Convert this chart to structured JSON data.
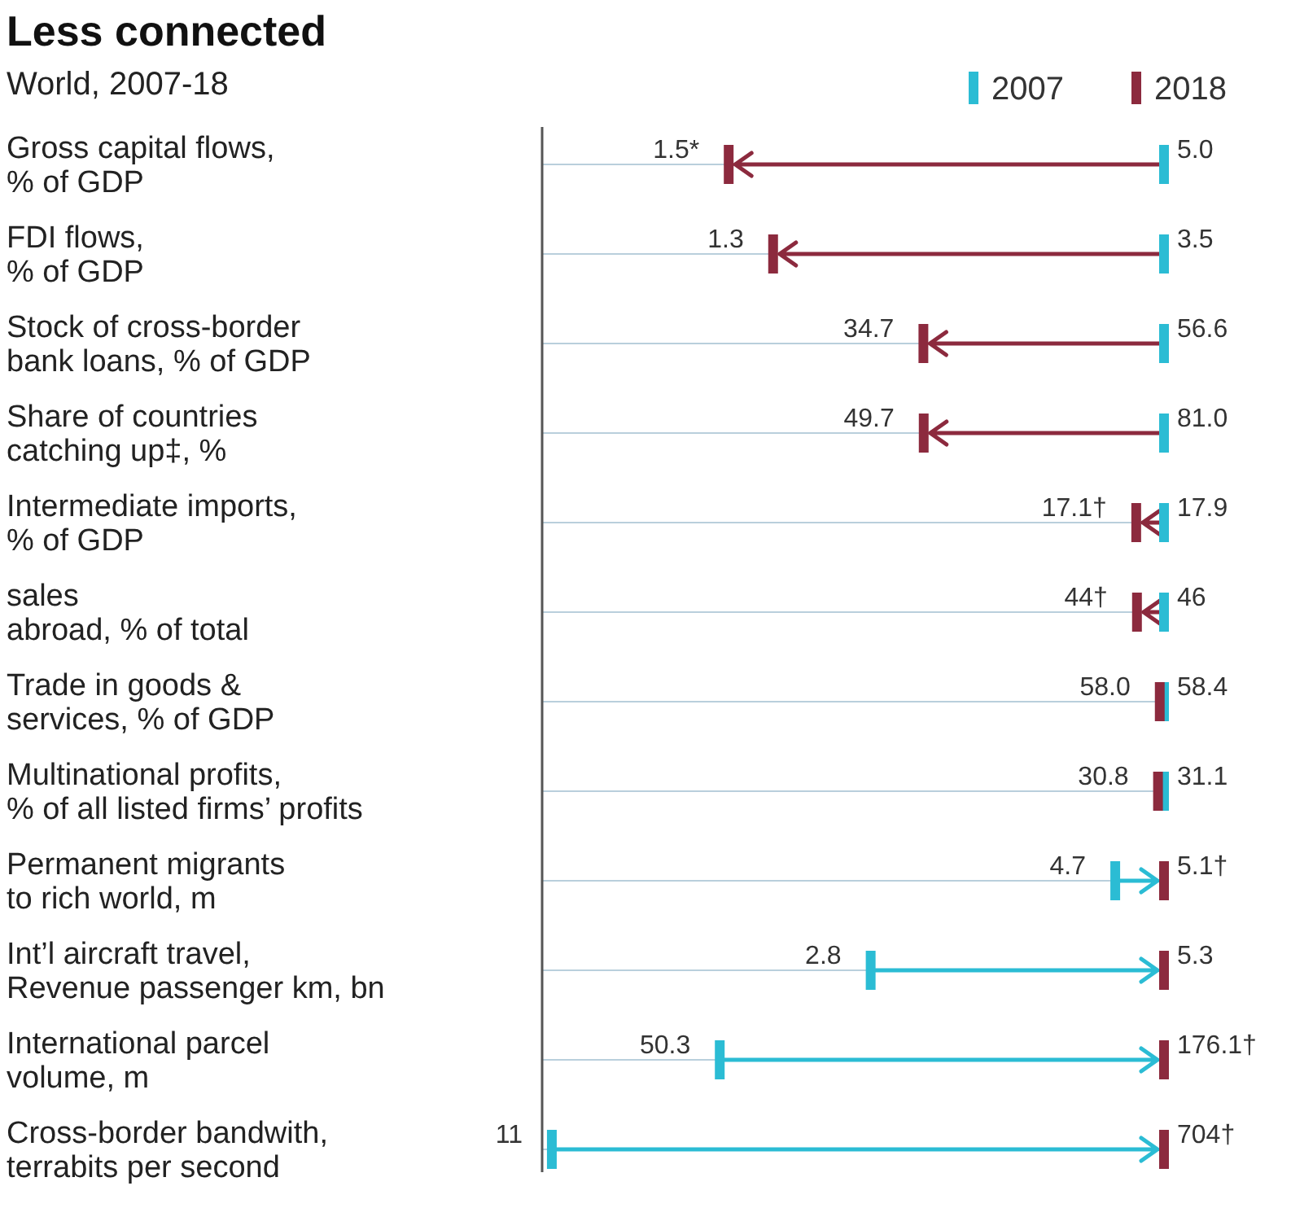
{
  "chart_data": {
    "type": "other",
    "title": "Less connected",
    "subtitle": "World, 2007-18",
    "legend": "top right",
    "categories": [
      "Gross capital flows,\n% of GDP",
      "FDI flows,\n% of GDP",
      "Stock of cross-border\nbank loans, % of GDP",
      "Share of countries\ncatching up‡, %",
      "Intermediate imports,\n% of GDP",
      "sales\nabroad, % of total",
      "Trade in goods &\nservices, % of GDP",
      "Multinational profits,\n% of all listed firms’ profits",
      "Permanent migrants\nto rich world, m",
      "Int’l aircraft travel,\nRevenue passenger km, bn",
      "International parcel\nvolume, m",
      "Cross-border bandwith,\nterrabits per second"
    ],
    "series": [
      {
        "name": "2007",
        "color": "#2bbcd4",
        "values": [
          5.0,
          3.5,
          56.6,
          81.0,
          17.9,
          46,
          58.4,
          31.1,
          4.7,
          2.8,
          50.3,
          11
        ],
        "value_labels": [
          "5.0",
          "3.5",
          "56.6",
          "81.0",
          "17.9",
          "46",
          "58.4",
          "31.1",
          "4.7",
          "2.8",
          "50.3",
          "11"
        ]
      },
      {
        "name": "2018",
        "color": "#8c2a3e",
        "values": [
          1.5,
          1.3,
          34.7,
          49.7,
          17.1,
          44,
          58.0,
          30.8,
          5.1,
          5.3,
          176.1,
          704
        ],
        "value_labels": [
          "1.5*",
          "1.3",
          "34.7",
          "49.7",
          "17.1†",
          "44†",
          "58.0",
          "30.8",
          "5.1†",
          "5.3",
          "176.1†",
          "704†"
        ]
      }
    ]
  }
}
